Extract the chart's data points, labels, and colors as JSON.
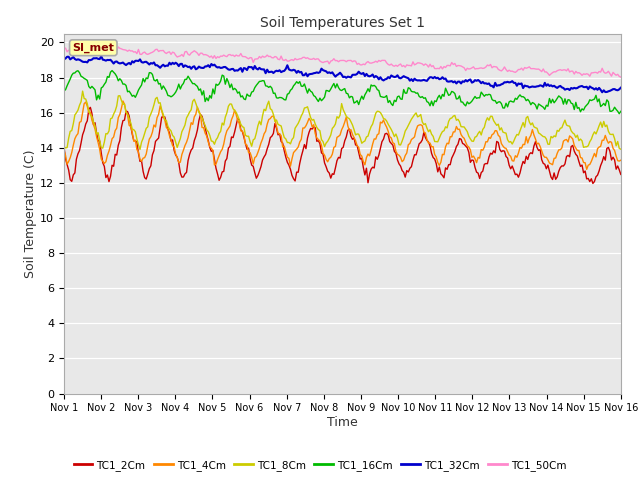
{
  "title": "Soil Temperatures Set 1",
  "xlabel": "Time",
  "ylabel": "Soil Temperature (C)",
  "ylim": [
    0,
    20.5
  ],
  "yticks": [
    0,
    2,
    4,
    6,
    8,
    10,
    12,
    14,
    16,
    18,
    20
  ],
  "series": {
    "TC1_2Cm": {
      "color": "#cc0000",
      "lw": 1.0
    },
    "TC1_4Cm": {
      "color": "#ff8800",
      "lw": 1.0
    },
    "TC1_8Cm": {
      "color": "#cccc00",
      "lw": 1.0
    },
    "TC1_16Cm": {
      "color": "#00bb00",
      "lw": 1.0
    },
    "TC1_32Cm": {
      "color": "#0000cc",
      "lw": 1.5
    },
    "TC1_50Cm": {
      "color": "#ff88cc",
      "lw": 1.0
    }
  },
  "xtick_labels": [
    "Nov 1",
    "Nov 2",
    "Nov 3",
    "Nov 4",
    "Nov 5",
    "Nov 6",
    "Nov 7",
    "Nov 8",
    "Nov 9",
    "Nov 10",
    "Nov 11",
    "Nov 12",
    "Nov 13",
    "Nov 14",
    "Nov 15",
    "Nov 16"
  ],
  "xtick_positions": [
    0,
    1,
    2,
    3,
    4,
    5,
    6,
    7,
    8,
    9,
    10,
    11,
    12,
    13,
    14,
    15
  ],
  "fig_bg": "#ffffff",
  "plot_bg": "#e8e8e8",
  "si_met_label": "SI_met",
  "legend_entries": [
    "TC1_2Cm",
    "TC1_4Cm",
    "TC1_8Cm",
    "TC1_16Cm",
    "TC1_32Cm",
    "TC1_50Cm"
  ],
  "legend_colors": [
    "#cc0000",
    "#ff8800",
    "#cccc00",
    "#00bb00",
    "#0000cc",
    "#ff88cc"
  ]
}
